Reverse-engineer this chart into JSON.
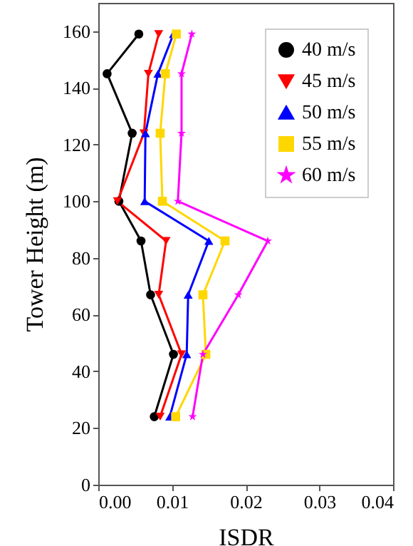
{
  "chart_data": {
    "type": "line",
    "xlabel": "ISDR",
    "ylabel": "Tower Height (m)",
    "xlim": [
      0,
      0.04
    ],
    "xticks": [
      {
        "value": 0,
        "label": "0.00"
      },
      {
        "value": 0.01,
        "label": "0.01"
      },
      {
        "value": 0.02,
        "label": "0.02"
      },
      {
        "value": 0.03,
        "label": "0.03"
      },
      {
        "value": 0.04,
        "label": "0.04"
      }
    ],
    "ylim": [
      0,
      170
    ],
    "yticks": [
      0,
      20,
      40,
      60,
      80,
      100,
      120,
      140,
      160
    ],
    "grid": false,
    "legend": "top right",
    "series": [
      {
        "name": "40 m/s",
        "color": "#000000",
        "marker": "circle",
        "x": [
          0.0076,
          0.0102,
          0.0071,
          0.0058,
          0.0028,
          0.0046,
          0.0012,
          0.0055
        ],
        "values": [
          24,
          46,
          67,
          86,
          100,
          124,
          145,
          159
        ]
      },
      {
        "name": "45 m/s",
        "color": "#ff0000",
        "marker": "triangle-down",
        "x": [
          0.0084,
          0.0113,
          0.0082,
          0.0092,
          0.0026,
          0.0062,
          0.0068,
          0.0082
        ],
        "values": [
          24,
          46,
          67,
          86,
          100,
          124,
          145,
          159
        ]
      },
      {
        "name": "50 m/s",
        "color": "#0000ff",
        "marker": "triangle",
        "x": [
          0.0097,
          0.012,
          0.0122,
          0.015,
          0.0063,
          0.0064,
          0.0081,
          0.0102
        ],
        "values": [
          24,
          46,
          67,
          86,
          100,
          124,
          145,
          159
        ]
      },
      {
        "name": "55 m/s",
        "color": "#ffd700",
        "marker": "square",
        "x": [
          0.0105,
          0.0146,
          0.0142,
          0.0172,
          0.0087,
          0.0084,
          0.0091,
          0.0106
        ],
        "values": [
          24,
          46,
          67,
          86,
          100,
          124,
          145,
          159
        ]
      },
      {
        "name": "60 m/s",
        "color": "#ff00ff",
        "marker": "star",
        "x": [
          0.0128,
          0.0142,
          0.019,
          0.023,
          0.0108,
          0.0113,
          0.0113,
          0.0127
        ],
        "values": [
          24,
          46,
          67,
          86,
          100,
          124,
          145,
          159
        ]
      }
    ]
  }
}
